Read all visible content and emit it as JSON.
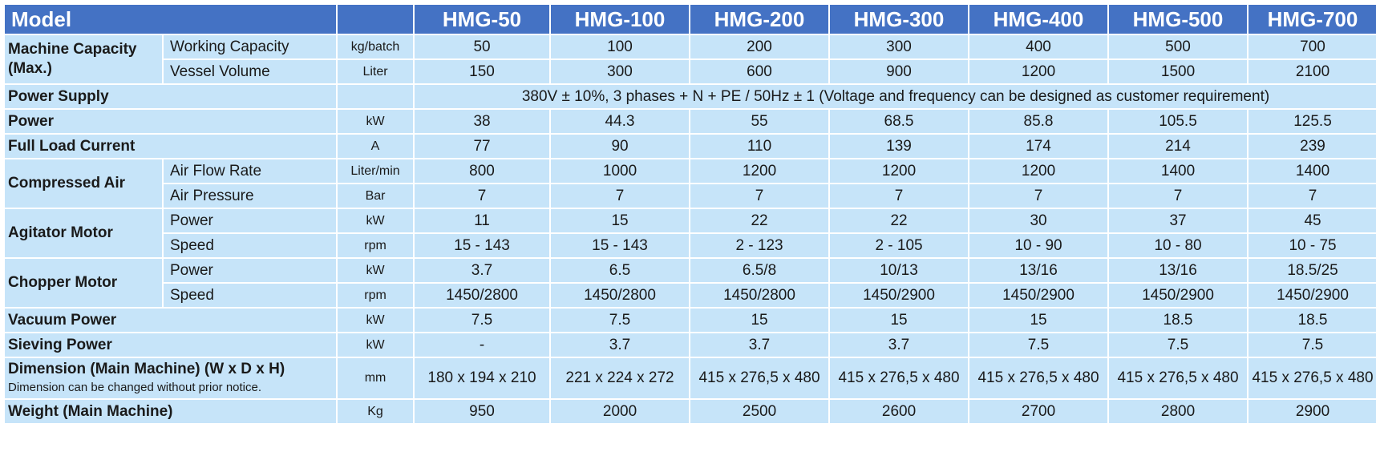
{
  "header": {
    "model_label": "Model",
    "models": [
      "HMG-50",
      "HMG-100",
      "HMG-200",
      "HMG-300",
      "HMG-400",
      "HMG-500",
      "HMG-700"
    ]
  },
  "rows": {
    "machine_capacity": {
      "group": "Machine Capacity (Max.)",
      "working_capacity": {
        "label": "Working Capacity",
        "unit": "kg/batch",
        "values": [
          "50",
          "100",
          "200",
          "300",
          "400",
          "500",
          "700"
        ]
      },
      "vessel_volume": {
        "label": "Vessel Volume",
        "unit": "Liter",
        "values": [
          "150",
          "300",
          "600",
          "900",
          "1200",
          "1500",
          "2100"
        ]
      }
    },
    "power_supply": {
      "label": "Power Supply",
      "value": "380V ± 10%, 3 phases + N + PE / 50Hz ± 1 (Voltage and frequency can be designed as customer requirement)"
    },
    "power": {
      "label": "Power",
      "unit": "kW",
      "values": [
        "38",
        "44.3",
        "55",
        "68.5",
        "85.8",
        "105.5",
        "125.5"
      ]
    },
    "full_load_current": {
      "label": "Full Load Current",
      "unit": "A",
      "values": [
        "77",
        "90",
        "110",
        "139",
        "174",
        "214",
        "239"
      ]
    },
    "compressed_air": {
      "group": "Compressed Air",
      "air_flow_rate": {
        "label": "Air Flow Rate",
        "unit": "Liter/min",
        "values": [
          "800",
          "1000",
          "1200",
          "1200",
          "1200",
          "1400",
          "1400"
        ]
      },
      "air_pressure": {
        "label": "Air Pressure",
        "unit": "Bar",
        "values": [
          "7",
          "7",
          "7",
          "7",
          "7",
          "7",
          "7"
        ]
      }
    },
    "agitator_motor": {
      "group": "Agitator Motor",
      "power": {
        "label": "Power",
        "unit": "kW",
        "values": [
          "11",
          "15",
          "22",
          "22",
          "30",
          "37",
          "45"
        ]
      },
      "speed": {
        "label": "Speed",
        "unit": "rpm",
        "values": [
          "15 - 143",
          "15 - 143",
          "2 - 123",
          "2 - 105",
          "10 - 90",
          "10 - 80",
          "10 - 75"
        ]
      }
    },
    "chopper_motor": {
      "group": "Chopper Motor",
      "power": {
        "label": "Power",
        "unit": "kW",
        "values": [
          "3.7",
          "6.5",
          "6.5/8",
          "10/13",
          "13/16",
          "13/16",
          "18.5/25"
        ]
      },
      "speed": {
        "label": "Speed",
        "unit": "rpm",
        "values": [
          "1450/2800",
          "1450/2800",
          "1450/2800",
          "1450/2900",
          "1450/2900",
          "1450/2900",
          "1450/2900"
        ]
      }
    },
    "vacuum_power": {
      "label": "Vacuum Power",
      "unit": "kW",
      "values": [
        "7.5",
        "7.5",
        "15",
        "15",
        "15",
        "18.5",
        "18.5"
      ]
    },
    "sieving_power": {
      "label": "Sieving Power",
      "unit": "kW",
      "values": [
        "-",
        "3.7",
        "3.7",
        "3.7",
        "7.5",
        "7.5",
        "7.5"
      ]
    },
    "dimension": {
      "label": "Dimension (Main Machine) (W x D x H)",
      "note": "Dimension can be changed without prior notice.",
      "unit": "mm",
      "values": [
        "180 x 194 x 210",
        "221 x 224 x 272",
        "415 x 276,5 x 480",
        "415 x 276,5 x 480",
        "415 x 276,5 x 480",
        "415 x 276,5 x 480",
        "415 x 276,5 x 480"
      ]
    },
    "weight": {
      "label": "Weight (Main Machine)",
      "unit": "Kg",
      "values": [
        "950",
        "2000",
        "2500",
        "2600",
        "2700",
        "2800",
        "2900"
      ]
    }
  }
}
